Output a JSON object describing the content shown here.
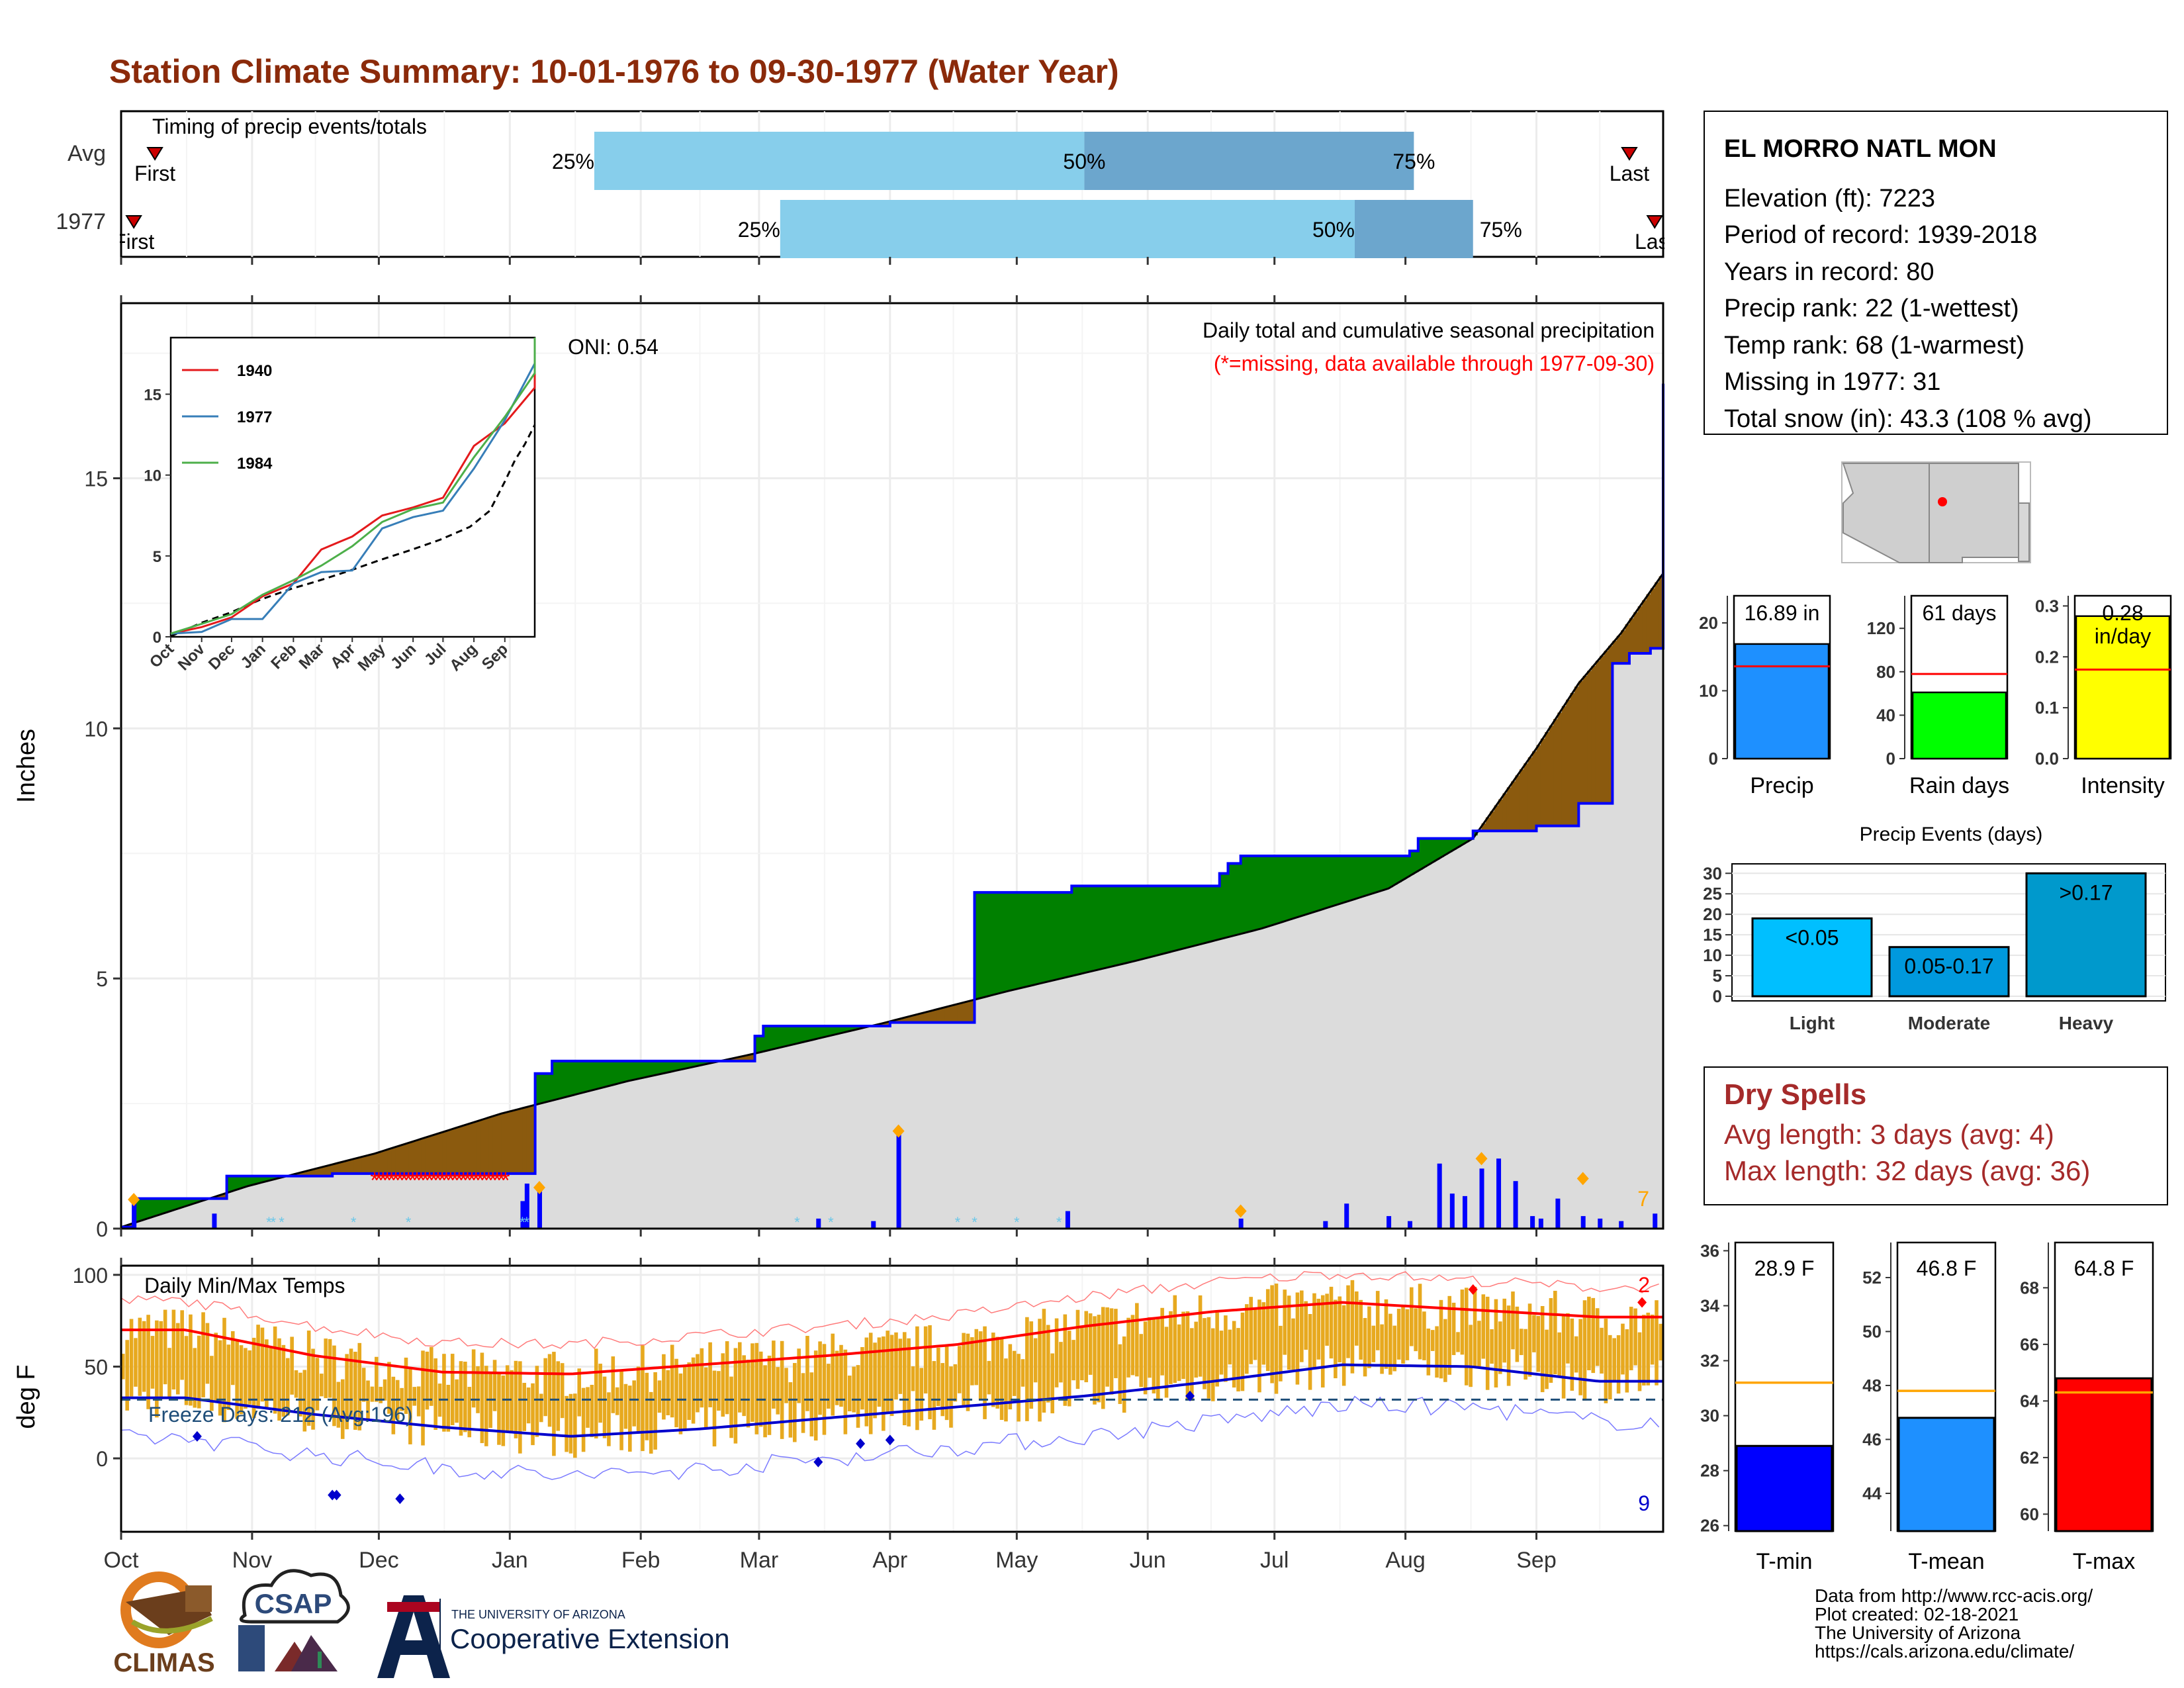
{
  "title": "Station Climate Summary: 10-01-1976 to 09-30-1977 (Water Year)",
  "colors": {
    "title": "#8b2a0a",
    "obs": "#0000ff",
    "wetter": "#008000",
    "drier": "#8b5a0e",
    "normal": "#dcdcdc",
    "temp_range": "#e7a91f",
    "tmax": "#ff0000",
    "tmin": "#0000cc",
    "light_blue": "#87ceeb",
    "steel_blue": "#6ca6cd",
    "dry_spell": "#a52a2a",
    "precip_bar": "#1e90ff",
    "rain_bar": "#00ff00",
    "intensity_bar": "#ffff00",
    "event_light": "#00bfff",
    "event_mod": "#0099dd",
    "event_heavy": "#0099cc",
    "tmean_bar": "#1e90ff",
    "avg_line": "#ffa500"
  },
  "timing": {
    "label": "Timing of precip events/totals",
    "rows": [
      {
        "label": "Avg",
        "first_label": "First",
        "last_label": "Last",
        "first": 8,
        "last": 357,
        "p25": 112,
        "p50": 228,
        "p75": 306,
        "p25_label": "25%",
        "p50_label": "50%",
        "p75_label": "75%"
      },
      {
        "label": "1977",
        "first_label": "First",
        "last_label": "Last",
        "first": 3,
        "last": 363,
        "p25": 156,
        "p50": 292,
        "p75": 320,
        "p25_label": "25%",
        "p50_label": "50%",
        "p75_label": "75%"
      }
    ]
  },
  "precip_panel": {
    "ylabel": "Inches",
    "oni": "ONI: 0.54",
    "subtitle": "Daily total and cumulative seasonal precipitation",
    "missing_note": "(*=missing, data available through 1977-09-30)",
    "corner_count": "7",
    "yticks": [
      "0",
      "5",
      "10",
      "15"
    ]
  },
  "inset": {
    "yticks": [
      "0",
      "5",
      "10",
      "15"
    ],
    "xticks": [
      "Oct",
      "Nov",
      "Dec",
      "Jan",
      "Feb",
      "Mar",
      "Apr",
      "May",
      "Jun",
      "Jul",
      "Aug",
      "Sep"
    ],
    "legend": [
      {
        "name": "1940",
        "color": "#e41a1c"
      },
      {
        "name": "1977",
        "color": "#377eb8"
      },
      {
        "name": "1984",
        "color": "#4daf4a"
      }
    ]
  },
  "temp_panel": {
    "ylabel": "deg F",
    "label": "Daily Min/Max Temps",
    "freeze": "Freeze Days: 212 (Avg:196)",
    "count_max": "2",
    "count_min": "9",
    "yticks": [
      "0",
      "50",
      "100"
    ]
  },
  "months": [
    "Oct",
    "Nov",
    "Dec",
    "Jan",
    "Feb",
    "Mar",
    "Apr",
    "May",
    "Jun",
    "Jul",
    "Aug",
    "Sep"
  ],
  "station": {
    "name": "EL MORRO NATL MON",
    "lines": [
      "Elevation (ft): 7223",
      "Period of record: 1939-2018",
      "Years in record: 80",
      "Precip rank: 22 (1-wettest)",
      "Temp rank: 68 (1-warmest)",
      "Missing in 1977: 31",
      "Total snow (in): 43.3 (108 % avg)"
    ]
  },
  "summary_bars": [
    {
      "label": "Precip",
      "value_label": "16.89 in",
      "value": 16.89,
      "avg": 13.6,
      "max": 24,
      "ticks": [
        "0",
        "10",
        "20"
      ],
      "tickvals": [
        0,
        10,
        20
      ]
    },
    {
      "label": "Rain days",
      "value_label": "61 days",
      "value": 61,
      "avg": 78,
      "max": 150,
      "ticks": [
        "0",
        "40",
        "80",
        "120"
      ],
      "tickvals": [
        0,
        40,
        80,
        120
      ]
    },
    {
      "label": "Intensity",
      "value_label": "0.28 in/day",
      "value_label_1": "0.28",
      "value_label_2": "in/day",
      "value": 0.28,
      "avg": 0.175,
      "max": 0.32,
      "ticks": [
        "0.0",
        "0.1",
        "0.2",
        "0.3"
      ],
      "tickvals": [
        0,
        0.1,
        0.2,
        0.3
      ]
    }
  ],
  "precip_events": {
    "title": "Precip Events (days)",
    "categories": [
      "Light",
      "Moderate",
      "Heavy"
    ],
    "values": [
      19,
      12,
      30
    ],
    "labels": [
      "<0.05",
      "0.05-0.17",
      ">0.17"
    ],
    "ticks": [
      "0",
      "5",
      "10",
      "15",
      "20",
      "25",
      "30"
    ]
  },
  "dry_spells": {
    "title": "Dry Spells",
    "avg": "Avg length: 3 days (avg: 4)",
    "max": "Max length: 32 days (avg: 36)"
  },
  "temp_bars": [
    {
      "label": "T-min",
      "value_label": "28.9 F",
      "value": 28.9,
      "avg": 31.2,
      "min": 25.8,
      "max": 36.3,
      "ticks": [
        "26",
        "28",
        "30",
        "32",
        "34",
        "36"
      ],
      "tickvals": [
        26,
        28,
        30,
        32,
        34,
        36
      ]
    },
    {
      "label": "T-mean",
      "value_label": "46.8 F",
      "value": 46.8,
      "avg": 47.8,
      "min": 42.6,
      "max": 53.3,
      "ticks": [
        "44",
        "46",
        "48",
        "50",
        "52"
      ],
      "tickvals": [
        44,
        46,
        48,
        50,
        52
      ]
    },
    {
      "label": "T-max",
      "value_label": "64.8 F",
      "value": 64.8,
      "avg": 64.3,
      "min": 59.4,
      "max": 69.6,
      "ticks": [
        "60",
        "62",
        "64",
        "66",
        "68"
      ],
      "tickvals": [
        60,
        62,
        64,
        66,
        68
      ]
    }
  ],
  "footer": {
    "lines": [
      "Data from http://www.rcc-acis.org/",
      "Plot created: 02-18-2021",
      "The University of Arizona",
      "https://cals.arizona.edu/climate/"
    ],
    "climas": "CLIMAS",
    "csap": "CSAP",
    "ua_small": "THE UNIVERSITY OF ARIZONA",
    "ua_big": "Cooperative Extension"
  },
  "chart_data": [
    {
      "type": "area",
      "title": "Daily total and cumulative seasonal precipitation",
      "ylabel": "Inches",
      "ylim": [
        0,
        18.5
      ],
      "xlim_days": [
        0,
        365
      ],
      "cumulative_1977": [
        [
          0,
          0.03
        ],
        [
          3,
          0.6
        ],
        [
          22,
          0.6
        ],
        [
          25,
          1.05
        ],
        [
          48,
          1.05
        ],
        [
          50,
          1.1
        ],
        [
          65,
          1.1
        ],
        [
          66,
          1.1
        ],
        [
          97,
          1.1
        ],
        [
          98,
          3.1
        ],
        [
          102,
          3.35
        ],
        [
          150,
          3.85
        ],
        [
          152,
          4.05
        ],
        [
          170,
          4.05
        ],
        [
          182,
          4.12
        ],
        [
          200,
          4.12
        ],
        [
          202,
          6.72
        ],
        [
          223,
          6.72
        ],
        [
          225,
          6.85
        ],
        [
          250,
          6.85
        ],
        [
          260,
          7.1
        ],
        [
          262,
          7.3
        ],
        [
          265,
          7.45
        ],
        [
          295,
          7.45
        ],
        [
          305,
          7.55
        ],
        [
          307,
          7.8
        ],
        [
          317,
          7.8
        ],
        [
          320,
          7.95
        ],
        [
          335,
          8.05
        ],
        [
          345,
          8.5
        ],
        [
          353,
          11.3
        ],
        [
          357,
          11.5
        ],
        [
          362,
          11.6
        ],
        [
          365,
          16.89
        ]
      ],
      "cumulative_normal": [
        [
          0,
          0.03
        ],
        [
          30,
          0.85
        ],
        [
          60,
          1.5
        ],
        [
          90,
          2.3
        ],
        [
          120,
          2.95
        ],
        [
          150,
          3.5
        ],
        [
          180,
          4.1
        ],
        [
          210,
          4.75
        ],
        [
          240,
          5.35
        ],
        [
          270,
          6.0
        ],
        [
          300,
          6.8
        ],
        [
          320,
          7.8
        ],
        [
          335,
          9.6
        ],
        [
          345,
          10.9
        ],
        [
          355,
          11.9
        ],
        [
          365,
          13.1
        ]
      ],
      "daily_precip": [
        [
          3,
          0.58
        ],
        [
          22,
          0.3
        ],
        [
          95,
          0.55
        ],
        [
          96,
          0.9
        ],
        [
          99,
          0.82
        ],
        [
          165,
          0.2
        ],
        [
          178,
          0.15
        ],
        [
          184,
          1.95
        ],
        [
          224,
          0.35
        ],
        [
          265,
          0.2
        ],
        [
          285,
          0.15
        ],
        [
          290,
          0.5
        ],
        [
          300,
          0.25
        ],
        [
          305,
          0.15
        ],
        [
          312,
          1.3
        ],
        [
          315,
          0.7
        ],
        [
          318,
          0.65
        ],
        [
          322,
          1.2
        ],
        [
          326,
          1.4
        ],
        [
          330,
          0.95
        ],
        [
          334,
          0.25
        ],
        [
          336,
          0.2
        ],
        [
          340,
          0.6
        ],
        [
          346,
          0.25
        ],
        [
          350,
          0.2
        ],
        [
          355,
          0.15
        ],
        [
          363,
          0.3
        ]
      ],
      "missing_days": [
        [
          60,
          91
        ]
      ]
    },
    {
      "type": "line",
      "title": "Daily Min/Max Temps",
      "ylabel": "deg F",
      "ylim": [
        -40,
        105
      ],
      "x": [
        "Oct",
        "Nov",
        "Dec",
        "Jan",
        "Feb",
        "Mar",
        "Apr",
        "May",
        "Jun",
        "Jul",
        "Aug",
        "Sep"
      ],
      "series": [
        {
          "name": "Tmax",
          "values": [
            70,
            56,
            47,
            46,
            51,
            56,
            62,
            72,
            80,
            85,
            81,
            77
          ]
        },
        {
          "name": "Tmin",
          "values": [
            33,
            24,
            17,
            12,
            16,
            22,
            28,
            34,
            42,
            51,
            50,
            42
          ]
        }
      ]
    },
    {
      "type": "line",
      "title": "",
      "ylim": [
        0,
        18.5
      ],
      "x": [
        "Oct",
        "Nov",
        "Dec",
        "Jan",
        "Feb",
        "Mar",
        "Apr",
        "May",
        "Jun",
        "Jul",
        "Aug",
        "Sep"
      ],
      "series": [
        {
          "name": "1940",
          "values": [
            0.6,
            1.2,
            2.5,
            3.3,
            5.4,
            6.2,
            7.5,
            8.0,
            8.6,
            11.8,
            13.2,
            15.4
          ]
        },
        {
          "name": "1977",
          "values": [
            0.3,
            1.1,
            1.1,
            3.3,
            4.0,
            4.1,
            6.7,
            7.4,
            7.8,
            10.4,
            13.4,
            16.9
          ]
        },
        {
          "name": "1984",
          "values": [
            0.8,
            1.4,
            2.6,
            3.5,
            4.4,
            5.6,
            7.1,
            7.9,
            8.3,
            11.1,
            13.6,
            16.3
          ]
        }
      ]
    },
    {
      "type": "bar",
      "title": "Precip Events (days)",
      "categories": [
        "Light",
        "Moderate",
        "Heavy"
      ],
      "values": [
        19,
        12,
        30
      ]
    }
  ]
}
